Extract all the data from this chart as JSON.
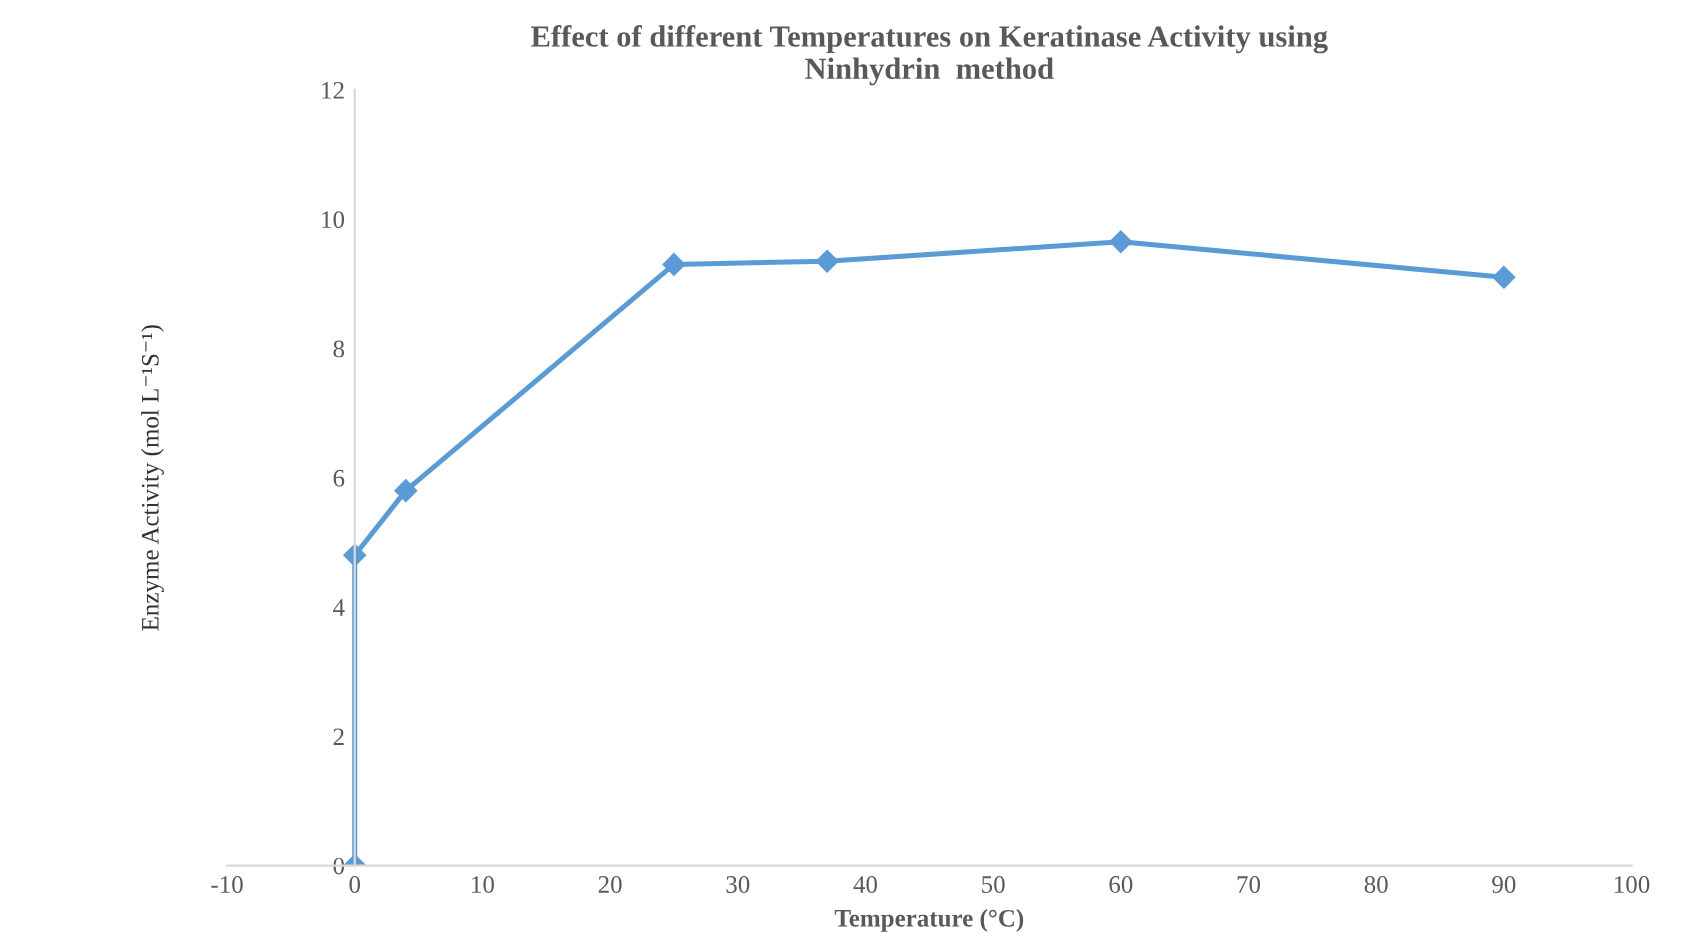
{
  "chart_data": {
    "type": "line",
    "title": "Effect of different Temperatures on Keratinase Activity using\nNinhydrin  method",
    "xlabel": "Temperature (°C)",
    "ylabel": "Enzyme Activity (mol L⁻¹S⁻¹)",
    "x": [
      0,
      0,
      4,
      25,
      37,
      60,
      90
    ],
    "series": [
      {
        "color": "#5b9bd5",
        "values": [
          0,
          4.8,
          5.8,
          9.3,
          9.35,
          9.65,
          9.1
        ]
      }
    ],
    "xlim": [
      -10,
      100
    ],
    "xticks": [
      -10,
      0,
      10,
      20,
      30,
      40,
      50,
      60,
      70,
      80,
      90,
      100
    ],
    "ylim": [
      0,
      12
    ],
    "yticks": [
      0,
      2,
      4,
      6,
      8,
      10,
      12
    ],
    "marker": "diamond",
    "line_style": "solid",
    "grid": false,
    "legend": false
  }
}
